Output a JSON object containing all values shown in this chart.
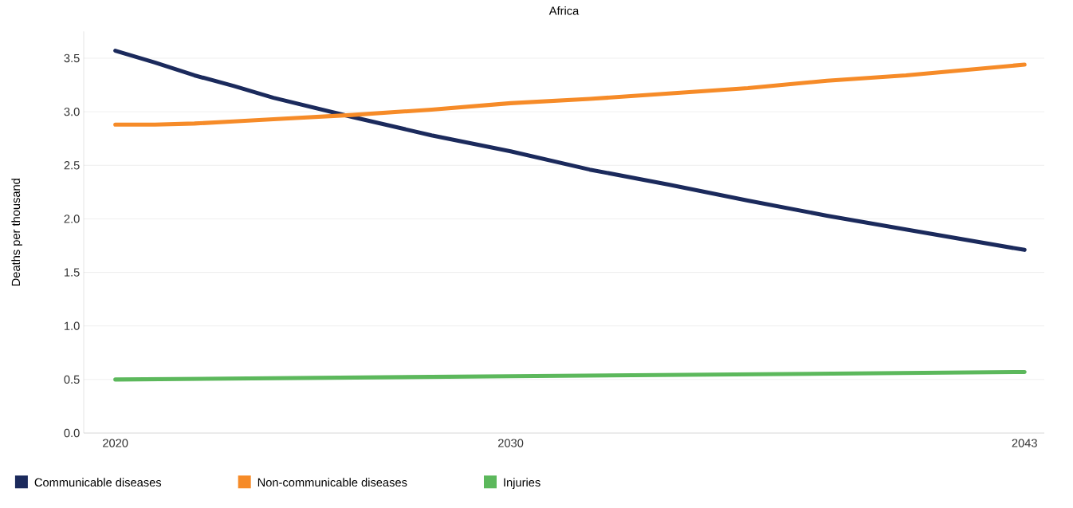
{
  "chart_data": {
    "type": "line",
    "title": "Africa",
    "ylabel": "Deaths per thousand",
    "x": [
      2020,
      2021,
      2022,
      2023,
      2024,
      2026,
      2028,
      2030,
      2032,
      2034,
      2036,
      2038,
      2040,
      2043
    ],
    "series": [
      {
        "name": "Communicable diseases",
        "color": "#1b2a5c",
        "values": [
          3.57,
          3.46,
          3.34,
          3.24,
          3.13,
          2.95,
          2.78,
          2.63,
          2.46,
          2.32,
          2.17,
          2.03,
          1.9,
          1.71
        ]
      },
      {
        "name": "Non-communicable diseases",
        "color": "#f68b28",
        "values": [
          2.88,
          2.88,
          2.89,
          2.91,
          2.93,
          2.97,
          3.02,
          3.08,
          3.12,
          3.17,
          3.22,
          3.29,
          3.34,
          3.44
        ]
      },
      {
        "name": "Injuries",
        "color": "#5cb85c",
        "x": [
          2020,
          2030,
          2043
        ],
        "values": [
          0.5,
          0.53,
          0.57
        ]
      }
    ],
    "xlim": [
      2019.2,
      2043.5
    ],
    "ylim": [
      0,
      3.75
    ],
    "xticks": [
      2020,
      2030,
      2043
    ],
    "yticks": [
      {
        "value": 0,
        "label": "0.0"
      },
      {
        "value": 0.5,
        "label": "0.5"
      },
      {
        "value": 1,
        "label": "1.0"
      },
      {
        "value": 1.5,
        "label": "1.5"
      },
      {
        "value": 2,
        "label": "2.0"
      },
      {
        "value": 2.5,
        "label": "2.5"
      },
      {
        "value": 3,
        "label": "3.0"
      },
      {
        "value": 3.5,
        "label": "3.5"
      }
    ],
    "grid": "y",
    "legend": "bottom left",
    "marker": "none",
    "line_style": "solid"
  }
}
